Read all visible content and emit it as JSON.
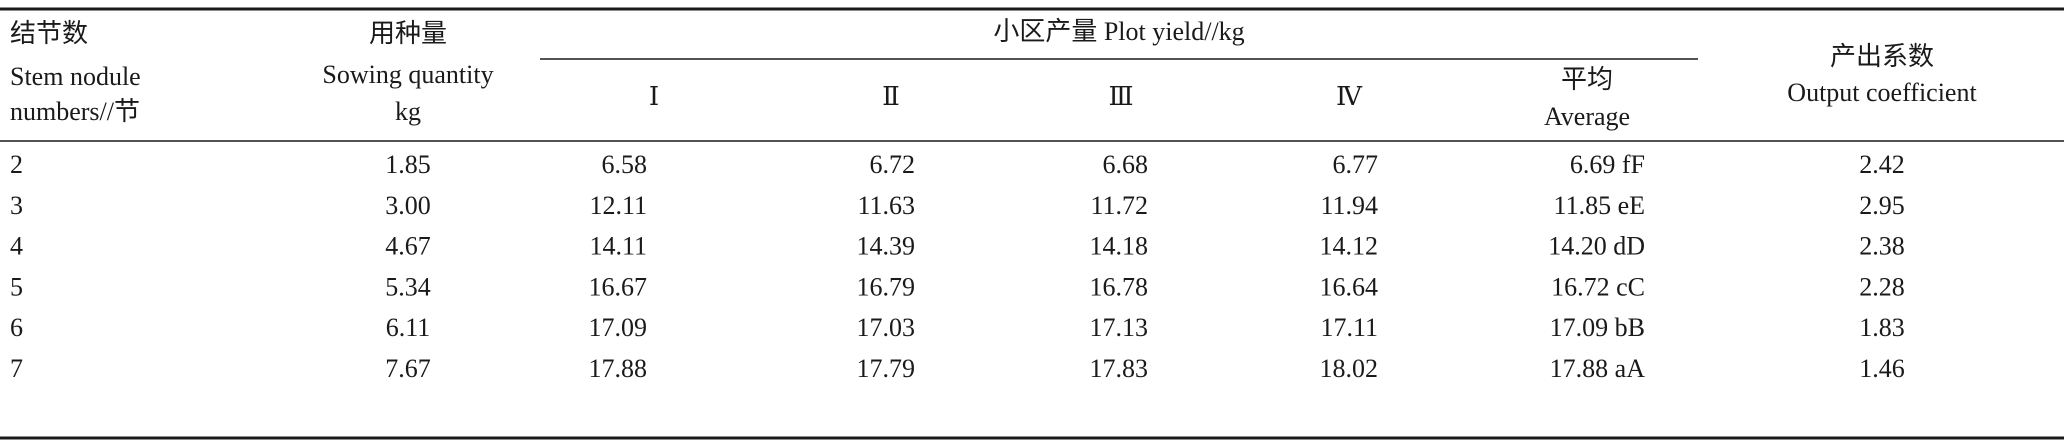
{
  "table": {
    "header": {
      "node": [
        "结节数",
        "Stem nodule",
        "numbers//节"
      ],
      "sowing": [
        "用种量",
        "Sowing quantity",
        "kg"
      ],
      "plot": "小区产量 Plot yield//kg",
      "plots": [
        "Ⅰ",
        "Ⅱ",
        "Ⅲ",
        "Ⅳ"
      ],
      "average": [
        "平均",
        "Average"
      ],
      "output": [
        "产出系数",
        "Output coefficient"
      ]
    },
    "rows": [
      [
        "2",
        "1.85",
        "6.58",
        "6.72",
        "6.68",
        "6.77",
        "6.69 fF",
        "2.42"
      ],
      [
        "3",
        "3.00",
        "12.11",
        "11.63",
        "11.72",
        "11.94",
        "11.85 eE",
        "2.95"
      ],
      [
        "4",
        "4.67",
        "14.11",
        "14.39",
        "14.18",
        "14.12",
        "14.20 dD",
        "2.38"
      ],
      [
        "5",
        "5.34",
        "16.67",
        "16.79",
        "16.78",
        "16.64",
        "16.72 cC",
        "2.28"
      ],
      [
        "6",
        "6.11",
        "17.09",
        "17.03",
        "17.13",
        "17.11",
        "17.09 bB",
        "1.83"
      ],
      [
        "7",
        "7.67",
        "17.88",
        "17.79",
        "17.83",
        "18.02",
        "17.88 aA",
        "1.46"
      ]
    ]
  }
}
